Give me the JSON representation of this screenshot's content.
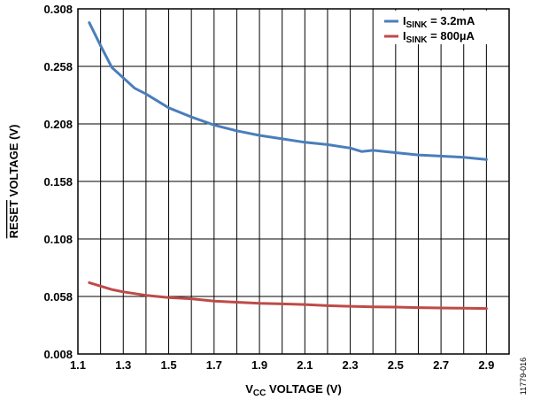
{
  "chart_data": {
    "type": "line",
    "title": "",
    "xlabel": {
      "main": "V",
      "sub": "CC",
      "rest": " VOLTAGE (V)"
    },
    "ylabel": {
      "overline": "RESET",
      "rest": " VOLTAGE (V)"
    },
    "xlim": [
      1.1,
      3.0
    ],
    "ylim": [
      0.008,
      0.308
    ],
    "x_ticks": [
      "1.1",
      "1.3",
      "1.5",
      "1.7",
      "1.9",
      "2.1",
      "2.3",
      "2.5",
      "2.7",
      "2.9"
    ],
    "y_ticks": [
      "0.008",
      "0.058",
      "0.108",
      "0.158",
      "0.208",
      "0.258",
      "0.308"
    ],
    "grid": true,
    "legend_position": "top-right",
    "series": [
      {
        "name": "I_SINK = 3.2mA",
        "name_main": "I",
        "name_sub": "SINK",
        "name_rest": " = 3.2mA",
        "color": "#4a7ebb",
        "x": [
          1.15,
          1.2,
          1.25,
          1.3,
          1.35,
          1.4,
          1.5,
          1.6,
          1.7,
          1.8,
          1.9,
          2.0,
          2.1,
          2.2,
          2.3,
          2.35,
          2.4,
          2.5,
          2.6,
          2.7,
          2.8,
          2.9
        ],
        "y": [
          0.296,
          0.276,
          0.257,
          0.248,
          0.239,
          0.234,
          0.222,
          0.214,
          0.207,
          0.202,
          0.198,
          0.195,
          0.192,
          0.19,
          0.187,
          0.184,
          0.185,
          0.183,
          0.181,
          0.18,
          0.179,
          0.177
        ]
      },
      {
        "name": "I_SINK = 800µA",
        "name_main": "I",
        "name_sub": "SINK",
        "name_rest": " = 800µA",
        "color": "#be4b48",
        "x": [
          1.15,
          1.2,
          1.25,
          1.3,
          1.4,
          1.5,
          1.6,
          1.7,
          1.8,
          1.9,
          2.0,
          2.1,
          2.2,
          2.3,
          2.4,
          2.5,
          2.6,
          2.7,
          2.8,
          2.9
        ],
        "y": [
          0.07,
          0.067,
          0.064,
          0.062,
          0.059,
          0.057,
          0.056,
          0.054,
          0.053,
          0.052,
          0.0515,
          0.051,
          0.05,
          0.0495,
          0.049,
          0.0488,
          0.0483,
          0.048,
          0.0478,
          0.0475
        ]
      }
    ]
  },
  "figure_id": "11779-016"
}
